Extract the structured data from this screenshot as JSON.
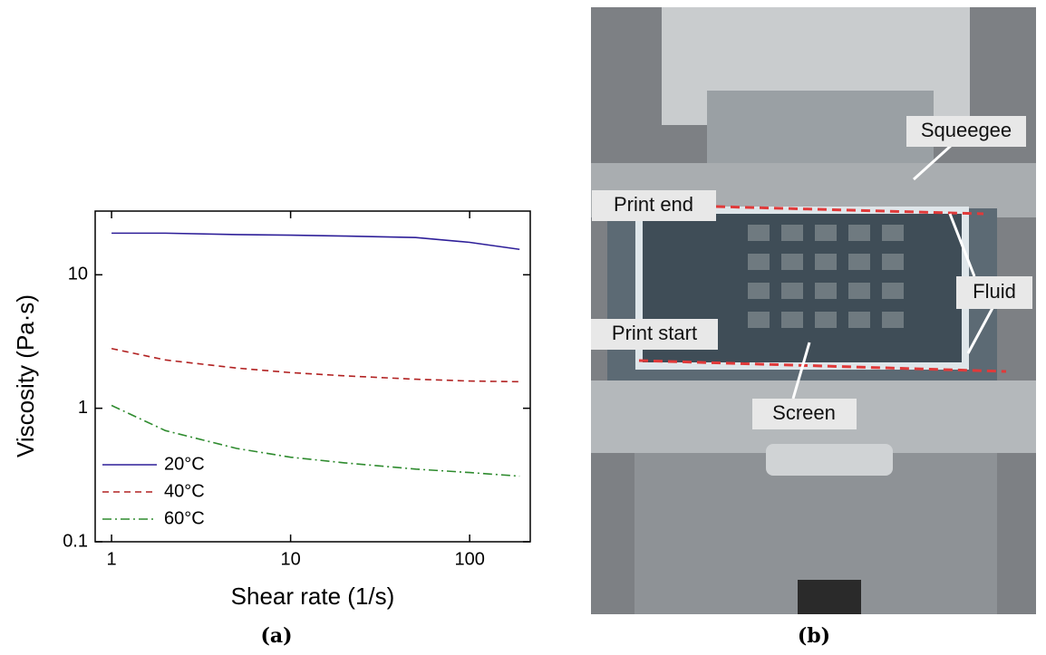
{
  "chart_data": {
    "type": "line",
    "x_label": "Shear rate (1/s)",
    "y_label": "Viscosity (Pa·s)",
    "x": [
      1,
      2,
      5,
      10,
      20,
      50,
      100,
      190
    ],
    "series": [
      {
        "name": "20°C",
        "color": "#2e1f99",
        "dash": "solid",
        "values": [
          20.5,
          20.5,
          20,
          19.8,
          19.5,
          19,
          17.5,
          15.5
        ]
      },
      {
        "name": "40°C",
        "color": "#b22222",
        "dash": "dashed",
        "values": [
          2.8,
          2.3,
          2.0,
          1.85,
          1.75,
          1.65,
          1.6,
          1.58
        ]
      },
      {
        "name": "60°C",
        "color": "#2e8b2e",
        "dash": "dashdot",
        "values": [
          1.05,
          0.68,
          0.5,
          0.43,
          0.39,
          0.35,
          0.33,
          0.31
        ]
      }
    ],
    "xlim": [
      0.81,
      218
    ],
    "ylim": [
      0.1,
      30
    ],
    "xticks": [
      1,
      10,
      100
    ],
    "yticks": [
      0.1,
      1,
      10
    ],
    "x_log": true,
    "y_log": true,
    "legend": "lower left"
  },
  "photo": {
    "labels": [
      "Squeegee",
      "Print end",
      "Fluid",
      "Print start",
      "Screen"
    ]
  },
  "captions": [
    "(a)",
    "(b)"
  ]
}
